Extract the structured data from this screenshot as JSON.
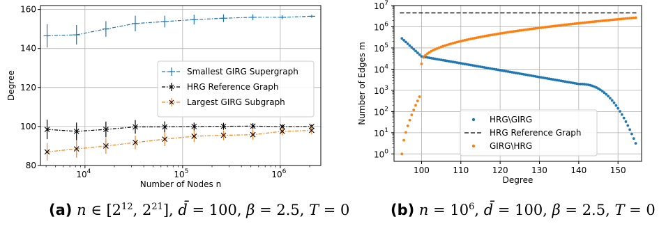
{
  "colors": {
    "blue": "#1f77b4",
    "black": "#000000",
    "orange": "#ff7f0e",
    "grid": "#b0b0b0"
  },
  "chart_data": [
    {
      "type": "line",
      "panel_label": "(a)",
      "caption_text": "n ∈ [2^12, 2^21], d̄ = 100, β = 2.5, T = 0",
      "xlabel": "Number of Nodes n",
      "ylabel": "Degree",
      "xscale": "log",
      "xlim": [
        3500,
        2600000
      ],
      "ylim": [
        80,
        162
      ],
      "x_tick_labels": [
        "10^4",
        "10^5",
        "10^6"
      ],
      "y_ticks": [
        80,
        100,
        120,
        140,
        160
      ],
      "grid": true,
      "legend_position": "center-right",
      "x": [
        4096,
        8192,
        16384,
        32768,
        65536,
        131072,
        262144,
        524288,
        1048576,
        2097152
      ],
      "series": [
        {
          "name": "Smallest GIRG Supergraph",
          "color_key": "blue",
          "values": [
            146.5,
            147.0,
            150.0,
            152.8,
            153.8,
            154.8,
            155.5,
            156.0,
            156.0,
            156.5
          ],
          "error": [
            6.0,
            5.0,
            4.0,
            4.0,
            3.0,
            2.5,
            2.0,
            1.5,
            1.0,
            0.8
          ]
        },
        {
          "name": "HRG Reference Graph",
          "color_key": "black",
          "values": [
            98.5,
            97.5,
            98.5,
            99.8,
            99.8,
            100.0,
            100.1,
            100.2,
            99.9,
            100.0
          ],
          "error": [
            5.0,
            4.5,
            4.0,
            3.5,
            2.8,
            2.0,
            1.8,
            1.5,
            1.2,
            1.0
          ]
        },
        {
          "name": "Largest GIRG Subgraph",
          "color_key": "orange",
          "values": [
            87.0,
            88.5,
            90.0,
            91.8,
            93.5,
            95.0,
            95.5,
            95.8,
            97.5,
            98.0
          ],
          "error": [
            4.5,
            4.5,
            4.0,
            3.5,
            3.5,
            3.0,
            2.5,
            2.5,
            2.0,
            2.0
          ]
        }
      ]
    },
    {
      "type": "scatter",
      "panel_label": "(b)",
      "caption_text": "n = 10^6, d̄ = 100, β = 2.5, T = 0",
      "xlabel": "Degree",
      "ylabel": "Number of Edges m",
      "yscale": "log",
      "xlim": [
        93,
        156
      ],
      "ylim_exponent": [
        -0.35,
        7
      ],
      "x_ticks": [
        100,
        110,
        120,
        130,
        140,
        150
      ],
      "y_tick_labels": [
        "10^0",
        "10^1",
        "10^2",
        "10^3",
        "10^4",
        "10^5",
        "10^6",
        "10^7"
      ],
      "grid": true,
      "legend_position": "lower-center",
      "series": [
        {
          "name": "HRG\\GIRG",
          "color_key": "blue",
          "marker": "dot",
          "x_start": 95,
          "x_end": 154.5,
          "x_step": 0.5,
          "shape": "log10 m falls from about 5.45 at degree 95 to 4.6 at 100, then steadily to about 3.3 at 140, then drops to 0.5 at 154.5"
        },
        {
          "name": "HRG Reference Graph",
          "color_key": "black",
          "style": "dashed",
          "y_value": 4500000,
          "x_range": [
            94.5,
            155
          ]
        },
        {
          "name": "GIRG\\HRG",
          "color_key": "orange",
          "marker": "dot",
          "x_start": 95,
          "x_end": 154.5,
          "x_step": 0.5,
          "shape": "log10 m rises from 0 at degree 95 to 2.7 at 99.5, then from 4.25 at 100 to about 6.43 at 154.5"
        }
      ]
    }
  ]
}
